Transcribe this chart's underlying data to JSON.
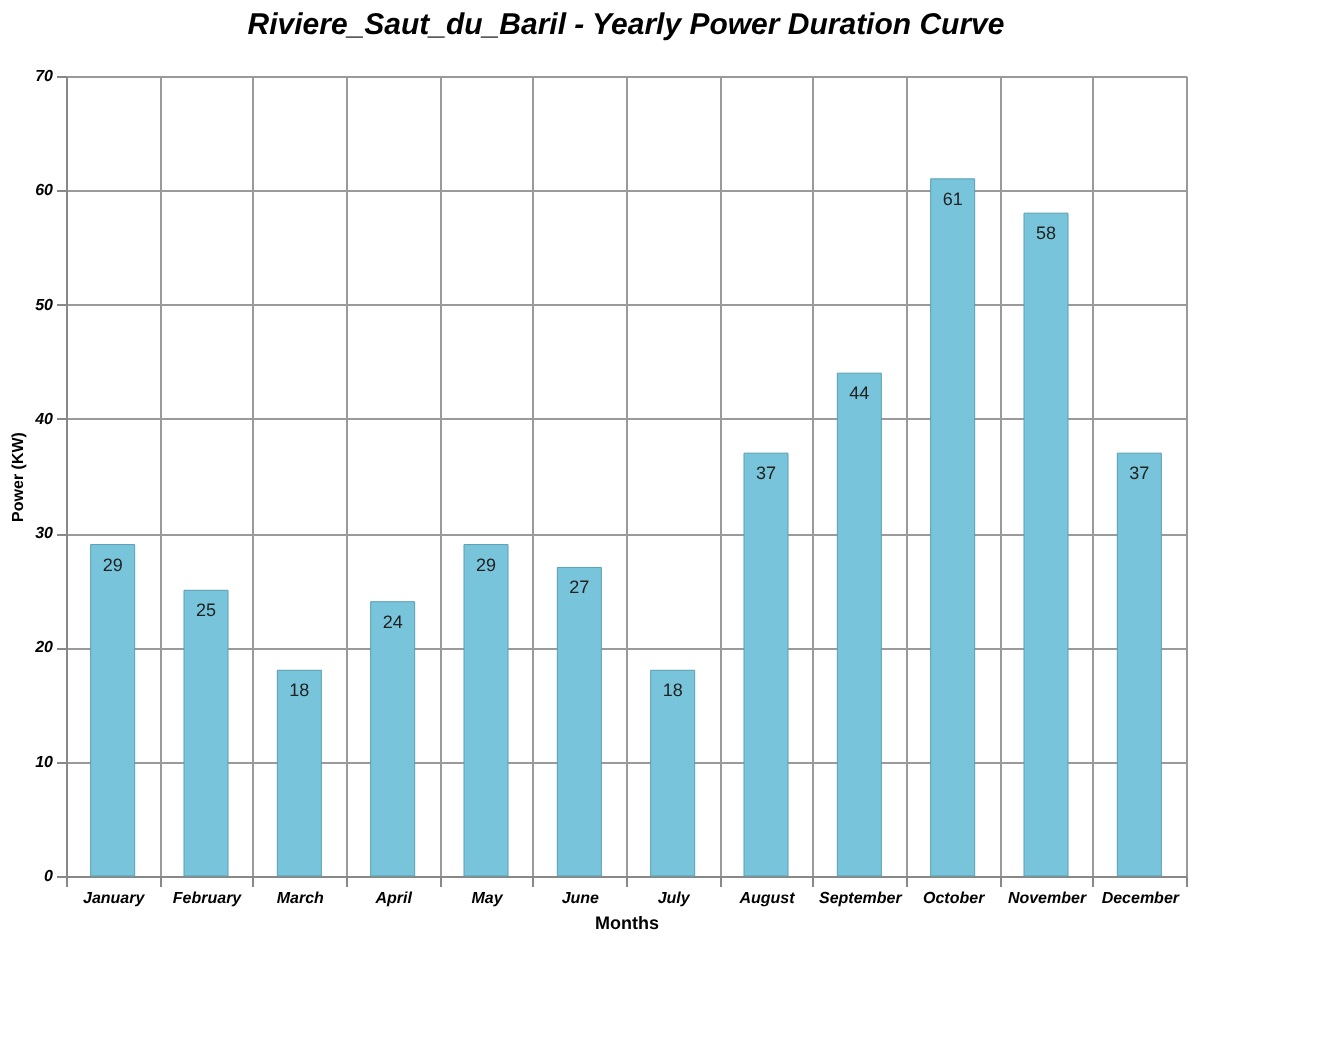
{
  "chart_data": {
    "type": "bar",
    "title": "Riviere_Saut_du_Baril - Yearly Power Duration Curve",
    "xlabel": "Months",
    "ylabel": "Power (KW)",
    "categories": [
      "January",
      "February",
      "March",
      "April",
      "May",
      "June",
      "July",
      "August",
      "September",
      "October",
      "November",
      "December"
    ],
    "values": [
      29,
      25,
      18,
      24,
      29,
      27,
      18,
      37,
      44,
      61,
      58,
      37
    ],
    "color": "#78c4da",
    "ylim": [
      0,
      70
    ],
    "yticks": [
      0,
      10,
      20,
      30,
      40,
      50,
      60,
      70
    ],
    "grid": true,
    "data_labels": true
  }
}
